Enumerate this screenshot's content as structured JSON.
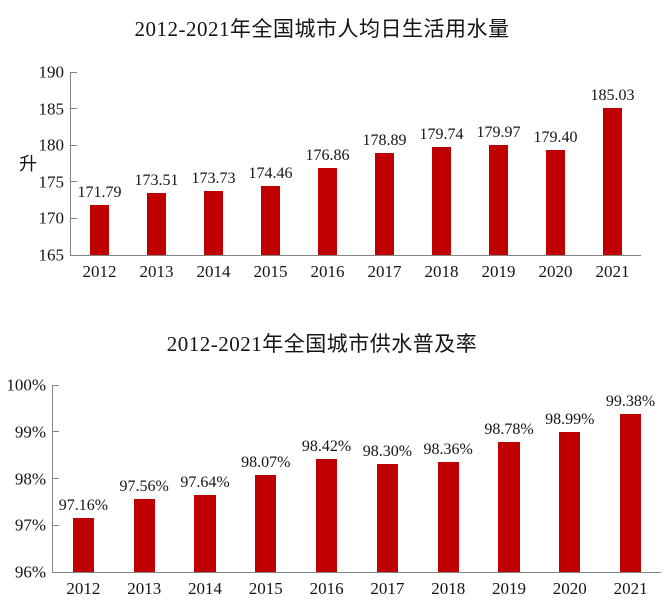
{
  "page": {
    "background": "#ffffff",
    "text_color": "#141414",
    "axis_color": "#848484"
  },
  "chart_data": [
    {
      "type": "bar",
      "title": "2012-2021年全国城市人均日生活用水量",
      "ylabel": "升",
      "xlabel": "",
      "categories": [
        "2012",
        "2013",
        "2014",
        "2015",
        "2016",
        "2017",
        "2018",
        "2019",
        "2020",
        "2021"
      ],
      "values": [
        171.79,
        173.51,
        173.73,
        174.46,
        176.86,
        178.89,
        179.74,
        179.97,
        179.4,
        185.03
      ],
      "data_labels": [
        "171.79",
        "173.51",
        "173.73",
        "174.46",
        "176.86",
        "178.89",
        "179.74",
        "179.97",
        "179.40",
        "185.03"
      ],
      "ylim": [
        165,
        190
      ],
      "ytick_step": 5,
      "ytick_labels": [
        "165",
        "170",
        "175",
        "180",
        "185",
        "190"
      ],
      "bar_color": "#C00000",
      "grid": false,
      "legend": false
    },
    {
      "type": "bar",
      "title": "2012-2021年全国城市供水普及率",
      "ylabel": "",
      "xlabel": "",
      "categories": [
        "2012",
        "2013",
        "2014",
        "2015",
        "2016",
        "2017",
        "2018",
        "2019",
        "2020",
        "2021"
      ],
      "values": [
        97.16,
        97.56,
        97.64,
        98.07,
        98.42,
        98.3,
        98.36,
        98.78,
        98.99,
        99.38
      ],
      "data_labels": [
        "97.16%",
        "97.56%",
        "97.64%",
        "98.07%",
        "98.42%",
        "98.30%",
        "98.36%",
        "98.78%",
        "98.99%",
        "99.38%"
      ],
      "ylim": [
        96,
        100
      ],
      "ytick_step": 1,
      "ytick_labels": [
        "96%",
        "97%",
        "98%",
        "99%",
        "100%"
      ],
      "bar_color": "#C00000",
      "grid": false,
      "legend": false
    }
  ]
}
